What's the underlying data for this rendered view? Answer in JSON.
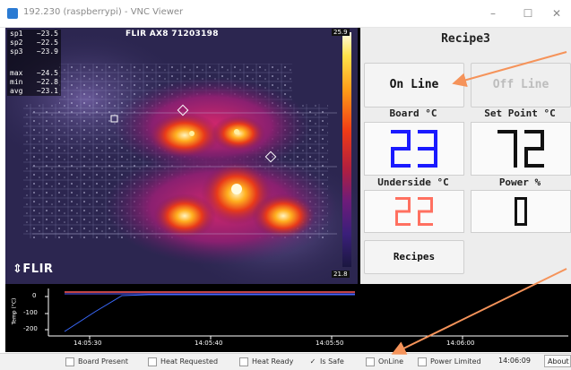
{
  "window": {
    "title": "192.230 (raspberrypi) - VNC Viewer",
    "minimize_glyph": "–",
    "maximize_glyph": "☐",
    "close_glyph": "✕",
    "app_icon": "vnc-icon"
  },
  "camera": {
    "model_label": "FLIR AX8  71203198",
    "scale_max": "25.9",
    "scale_min": "21.8",
    "logo_text": "FLIR",
    "readouts": [
      {
        "name": "sp1",
        "value": "~23.5"
      },
      {
        "name": "sp2",
        "value": "~22.5"
      },
      {
        "name": "sp3",
        "value": "~23.9"
      },
      {
        "name": "max",
        "value": "~24.5"
      },
      {
        "name": "min",
        "value": "~22.8"
      },
      {
        "name": "avg",
        "value": "~23.1"
      }
    ],
    "unit": "°C"
  },
  "panel": {
    "recipe_title": "Recipe3",
    "online_button": "On Line",
    "offline_button": "Off Line",
    "board_label": "Board °C",
    "setpoint_label": "Set Point °C",
    "underside_label": "Underside °C",
    "power_label": "Power %",
    "board_value": "23",
    "setpoint_value": "72",
    "underside_value": "22",
    "power_value": "0",
    "recipes_button": "Recipes",
    "colors": {
      "board_digits": "#1a1aff",
      "setpoint_digits": "#111111",
      "underside_digits": "#ff7060",
      "power_digits": "#111111"
    }
  },
  "graph": {
    "ylabel": "Temp (°C)",
    "y_ticks": [
      "0",
      "-100",
      "-200"
    ],
    "x_ticks": [
      "14:05:30",
      "14:05:40",
      "14:05:50",
      "14:06:00"
    ]
  },
  "status": {
    "checkboxes": [
      {
        "label": "Board Present",
        "checked": false
      },
      {
        "label": "Heat Requested",
        "checked": false
      },
      {
        "label": "Heat Ready",
        "checked": false
      },
      {
        "label": "Is Safe",
        "checked": true
      },
      {
        "label": "OnLine",
        "checked": false
      },
      {
        "label": "Power Limited",
        "checked": false
      }
    ],
    "time": "14:06:09",
    "about_button": "About"
  },
  "annotations": {
    "arrow_color": "#f5935a"
  }
}
